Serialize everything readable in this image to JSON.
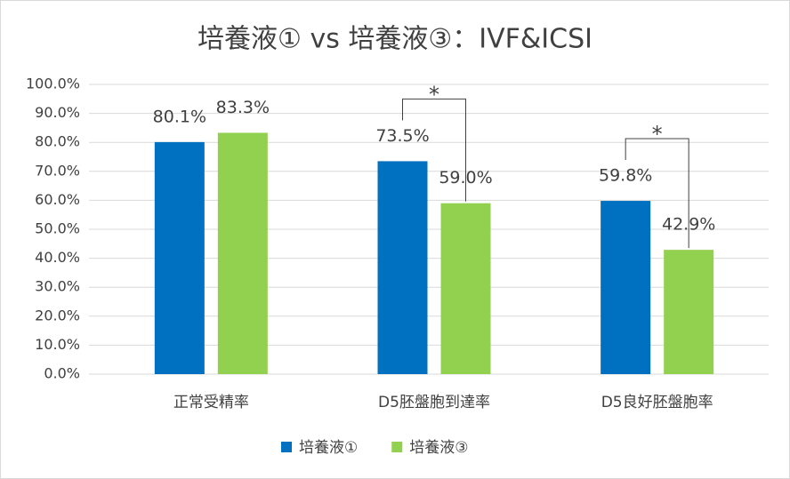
{
  "chart_data": {
    "type": "bar",
    "title": "培養液① vs 培養液③：IVF&ICSI",
    "categories": [
      "正常受精率",
      "D5胚盤胞到達率",
      "D5良好胚盤胞率"
    ],
    "series": [
      {
        "name": "培養液①",
        "color": "#0070c0",
        "values": [
          80.1,
          73.5,
          59.8
        ],
        "value_labels": [
          "80.1%",
          "73.5%",
          "59.8%"
        ]
      },
      {
        "name": "培養液③",
        "color": "#92d050",
        "values": [
          83.3,
          59.0,
          42.9
        ],
        "value_labels": [
          "83.3%",
          "59.0%",
          "42.9%"
        ]
      }
    ],
    "ylim": [
      0,
      100
    ],
    "yticks": [
      {
        "value": 0,
        "label": "0.0%"
      },
      {
        "value": 10,
        "label": "10.0%"
      },
      {
        "value": 20,
        "label": "20.0%"
      },
      {
        "value": 30,
        "label": "30.0%"
      },
      {
        "value": 40,
        "label": "40.0%"
      },
      {
        "value": 50,
        "label": "50.0%"
      },
      {
        "value": 60,
        "label": "60.0%"
      },
      {
        "value": 70,
        "label": "70.0%"
      },
      {
        "value": 80,
        "label": "80.0%"
      },
      {
        "value": 90,
        "label": "90.0%"
      },
      {
        "value": 100,
        "label": "100.0%"
      }
    ],
    "grid": true,
    "legend": "bottom",
    "annotations": [
      "*",
      "*"
    ]
  }
}
